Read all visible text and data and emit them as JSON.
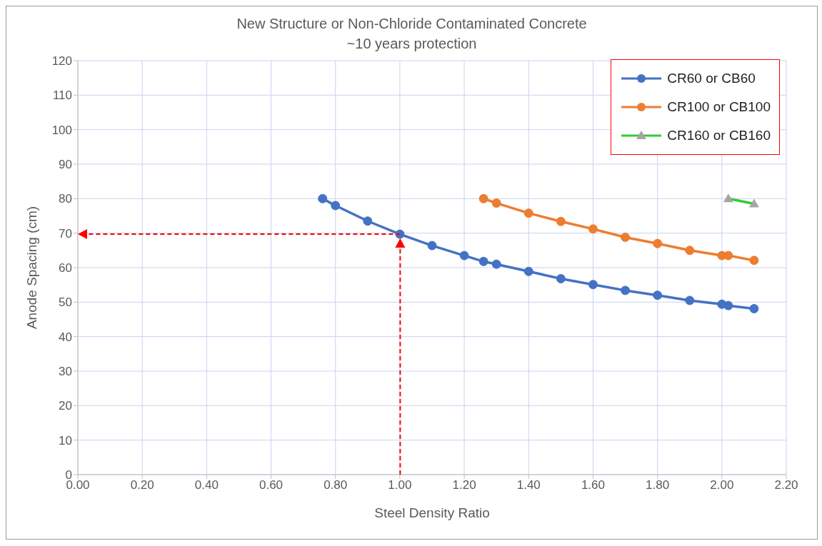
{
  "chart_data": {
    "type": "line",
    "title": "New Structure or Non-Chloride Contaminated Concrete",
    "subtitle": "~10 years protection",
    "xlabel": "Steel  Density Ratio",
    "ylabel": "Anode Spacing (cm)",
    "xlim": [
      0,
      2.2
    ],
    "xticks": [
      {
        "value": 0,
        "label": "0.00"
      },
      {
        "value": 0.2,
        "label": "0.20"
      },
      {
        "value": 0.4,
        "label": "0.40"
      },
      {
        "value": 0.6,
        "label": "0.60"
      },
      {
        "value": 0.8,
        "label": "0.80"
      },
      {
        "value": 1,
        "label": "1.00"
      },
      {
        "value": 1.2,
        "label": "1.20"
      },
      {
        "value": 1.4,
        "label": "1.40"
      },
      {
        "value": 1.6,
        "label": "1.60"
      },
      {
        "value": 1.8,
        "label": "1.80"
      },
      {
        "value": 2,
        "label": "2.00"
      },
      {
        "value": 2.2,
        "label": "2.20"
      }
    ],
    "ylim": [
      0,
      120
    ],
    "yticks": [
      0,
      10,
      20,
      30,
      40,
      50,
      60,
      70,
      80,
      90,
      100,
      110,
      120
    ],
    "grid": true,
    "legend": "top right",
    "series": [
      {
        "name": "CR60 or CB60",
        "color": "#4472c4",
        "marker": "circle",
        "x": [
          0.76,
          0.8,
          0.9,
          1.0,
          1.1,
          1.2,
          1.26,
          1.3,
          1.4,
          1.5,
          1.6,
          1.7,
          1.8,
          1.9,
          2.0,
          2.02,
          2.1
        ],
        "values": [
          80,
          78,
          73.5,
          69.7,
          66.4,
          63.5,
          61.8,
          61,
          58.9,
          56.8,
          55.1,
          53.4,
          52,
          50.5,
          49.4,
          49,
          48.1
        ]
      },
      {
        "name": "CR100 or CB100",
        "color": "#ed7d31",
        "marker": "circle",
        "x": [
          1.26,
          1.3,
          1.4,
          1.5,
          1.6,
          1.7,
          1.8,
          1.9,
          2.0,
          2.02,
          2.1
        ],
        "values": [
          80,
          78.7,
          75.8,
          73.4,
          71.2,
          68.8,
          67,
          65,
          63.5,
          63.5,
          62.1
        ]
      },
      {
        "name": "CR160 or CB160",
        "color": "#33cc33",
        "colors": [
          "#a5a5a5",
          "#a5a5a5"
        ],
        "marker": "triangle",
        "x": [
          2.02,
          2.1
        ],
        "values": [
          80,
          78.5
        ]
      }
    ]
  }
}
